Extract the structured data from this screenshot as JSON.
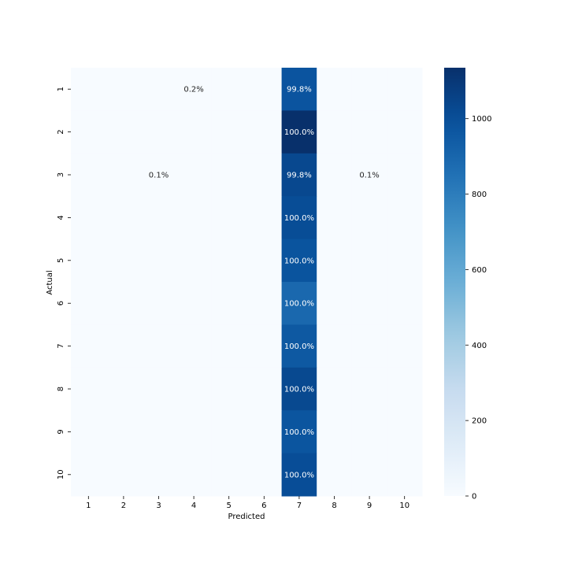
{
  "chart_data": {
    "type": "heatmap",
    "title": "",
    "xlabel": "Predicted",
    "ylabel": "Actual",
    "x_categories": [
      "1",
      "2",
      "3",
      "4",
      "5",
      "6",
      "7",
      "8",
      "9",
      "10"
    ],
    "y_categories": [
      "1",
      "2",
      "3",
      "4",
      "5",
      "6",
      "7",
      "8",
      "9",
      "10"
    ],
    "colormap": "Blues",
    "vmin": 0,
    "vmax": 1135,
    "colorbar_ticks": [
      0,
      200,
      400,
      600,
      800,
      1000
    ],
    "values": [
      [
        0,
        0,
        0,
        2,
        0,
        0,
        978,
        0,
        0,
        0
      ],
      [
        0,
        0,
        0,
        0,
        0,
        0,
        1135,
        0,
        0,
        0
      ],
      [
        0,
        0,
        1,
        0,
        0,
        0,
        1030,
        0,
        1,
        0
      ],
      [
        0,
        0,
        0,
        0,
        0,
        0,
        1010,
        0,
        0,
        0
      ],
      [
        0,
        0,
        0,
        0,
        0,
        0,
        982,
        0,
        0,
        0
      ],
      [
        0,
        0,
        0,
        0,
        0,
        0,
        892,
        0,
        0,
        0
      ],
      [
        0,
        0,
        0,
        0,
        0,
        0,
        958,
        0,
        0,
        0
      ],
      [
        0,
        0,
        0,
        0,
        0,
        0,
        1028,
        0,
        0,
        0
      ],
      [
        0,
        0,
        0,
        0,
        0,
        0,
        974,
        0,
        0,
        0
      ],
      [
        0,
        0,
        0,
        0,
        0,
        0,
        1009,
        0,
        0,
        0
      ]
    ],
    "annotations": [
      [
        "",
        "",
        "",
        "0.2%",
        "",
        "",
        "99.8%",
        "",
        "",
        ""
      ],
      [
        "",
        "",
        "",
        "",
        "",
        "",
        "100.0%",
        "",
        "",
        ""
      ],
      [
        "",
        "",
        "0.1%",
        "",
        "",
        "",
        "99.8%",
        "",
        "0.1%",
        ""
      ],
      [
        "",
        "",
        "",
        "",
        "",
        "",
        "100.0%",
        "",
        "",
        ""
      ],
      [
        "",
        "",
        "",
        "",
        "",
        "",
        "100.0%",
        "",
        "",
        ""
      ],
      [
        "",
        "",
        "",
        "",
        "",
        "",
        "100.0%",
        "",
        "",
        ""
      ],
      [
        "",
        "",
        "",
        "",
        "",
        "",
        "100.0%",
        "",
        "",
        ""
      ],
      [
        "",
        "",
        "",
        "",
        "",
        "",
        "100.0%",
        "",
        "",
        ""
      ],
      [
        "",
        "",
        "",
        "",
        "",
        "",
        "100.0%",
        "",
        "",
        ""
      ],
      [
        "",
        "",
        "",
        "",
        "",
        "",
        "100.0%",
        "",
        "",
        ""
      ]
    ],
    "grid": false,
    "legend": "colorbar-right"
  }
}
